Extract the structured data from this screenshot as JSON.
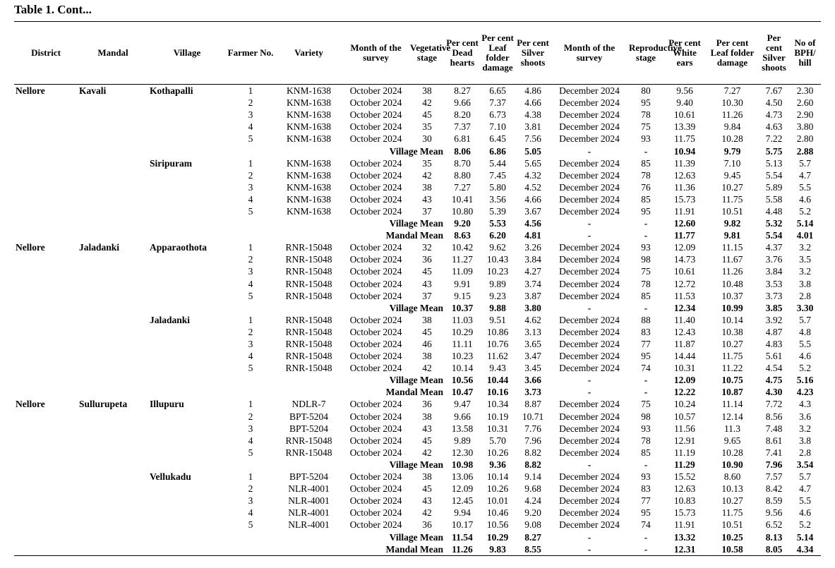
{
  "title": "Table 1. Cont...",
  "table": {
    "columns": [
      "District",
      "Mandal",
      "Village",
      "Farmer No.",
      "Variety",
      "Month of the survey",
      "Vegetative stage",
      "Per cent Dead hearts",
      "Per cent Leaf folder damage",
      "Per cent Silver shoots",
      "Month of the survey",
      "Reproductive stage",
      "Per cent White ears",
      "Per cent Leaf folder damage",
      "Per cent Silver shoots",
      "No of BPH/ hill"
    ],
    "rows": [
      {
        "cells": [
          "Nellore",
          "Kavali",
          "Kothapalli",
          "1",
          "KNM-1638",
          "October 2024",
          "38",
          "8.27",
          "6.65",
          "4.86",
          "December 2024",
          "80",
          "9.56",
          "7.27",
          "7.67",
          "2.30"
        ]
      },
      {
        "cells": [
          null,
          null,
          null,
          "2",
          "KNM-1638",
          "October 2024",
          "42",
          "9.66",
          "7.37",
          "4.66",
          "December 2024",
          "95",
          "9.40",
          "10.30",
          "4.50",
          "2.60"
        ]
      },
      {
        "cells": [
          null,
          null,
          null,
          "3",
          "KNM-1638",
          "October 2024",
          "45",
          "8.20",
          "6.73",
          "4.38",
          "December 2024",
          "78",
          "10.61",
          "11.26",
          "4.73",
          "2.90"
        ]
      },
      {
        "cells": [
          null,
          null,
          null,
          "4",
          "KNM-1638",
          "October 2024",
          "35",
          "7.37",
          "7.10",
          "3.81",
          "December 2024",
          "75",
          "13.39",
          "9.84",
          "4.63",
          "3.80"
        ]
      },
      {
        "cells": [
          null,
          null,
          null,
          "5",
          "KNM-1638",
          "October 2024",
          "30",
          "6.81",
          "6.45",
          "7.56",
          "December 2024",
          "93",
          "11.75",
          "10.28",
          "7.22",
          "2.80"
        ]
      },
      {
        "summary": true,
        "cells": [
          null,
          null,
          null,
          null,
          "Village Mean",
          null,
          null,
          "8.06",
          "6.86",
          "5.05",
          "-",
          "-",
          "10.94",
          "9.79",
          "5.75",
          "2.88"
        ]
      },
      {
        "cells": [
          null,
          null,
          "Siripuram",
          "1",
          "KNM-1638",
          "October 2024",
          "35",
          "8.70",
          "5.44",
          "5.65",
          "December 2024",
          "85",
          "11.39",
          "7.10",
          "5.13",
          "5.7"
        ]
      },
      {
        "cells": [
          null,
          null,
          null,
          "2",
          "KNM-1638",
          "October 2024",
          "42",
          "8.80",
          "7.45",
          "4.32",
          "December 2024",
          "78",
          "12.63",
          "9.45",
          "5.54",
          "4.7"
        ]
      },
      {
        "cells": [
          null,
          null,
          null,
          "3",
          "KNM-1638",
          "October 2024",
          "38",
          "7.27",
          "5.80",
          "4.52",
          "December 2024",
          "76",
          "11.36",
          "10.27",
          "5.89",
          "5.5"
        ]
      },
      {
        "cells": [
          null,
          null,
          null,
          "4",
          "KNM-1638",
          "October 2024",
          "43",
          "10.41",
          "3.56",
          "4.66",
          "December 2024",
          "85",
          "15.73",
          "11.75",
          "5.58",
          "4.6"
        ]
      },
      {
        "cells": [
          null,
          null,
          null,
          "5",
          "KNM-1638",
          "October 2024",
          "37",
          "10.80",
          "5.39",
          "3.67",
          "December 2024",
          "95",
          "11.91",
          "10.51",
          "4.48",
          "5.2"
        ]
      },
      {
        "summary": true,
        "cells": [
          null,
          null,
          null,
          null,
          "Village Mean",
          null,
          null,
          "9.20",
          "5.53",
          "4.56",
          "-",
          "-",
          "12.60",
          "9.82",
          "5.32",
          "5.14"
        ]
      },
      {
        "summary": true,
        "cells": [
          null,
          null,
          null,
          null,
          "Mandal Mean",
          null,
          null,
          "8.63",
          "6.20",
          "4.81",
          "-",
          "-",
          "11.77",
          "9.81",
          "5.54",
          "4.01"
        ]
      },
      {
        "cells": [
          "Nellore",
          "Jaladanki",
          "Apparaothota",
          "1",
          "RNR-15048",
          "October 2024",
          "32",
          "10.42",
          "9.62",
          "3.26",
          "December 2024",
          "93",
          "12.09",
          "11.15",
          "4.37",
          "3.2"
        ]
      },
      {
        "cells": [
          null,
          null,
          null,
          "2",
          "RNR-15048",
          "October 2024",
          "36",
          "11.27",
          "10.43",
          "3.84",
          "December 2024",
          "98",
          "14.73",
          "11.67",
          "3.76",
          "3.5"
        ]
      },
      {
        "cells": [
          null,
          null,
          null,
          "3",
          "RNR-15048",
          "October 2024",
          "45",
          "11.09",
          "10.23",
          "4.27",
          "December 2024",
          "75",
          "10.61",
          "11.26",
          "3.84",
          "3.2"
        ]
      },
      {
        "cells": [
          null,
          null,
          null,
          "4",
          "RNR-15048",
          "October 2024",
          "43",
          "9.91",
          "9.89",
          "3.74",
          "December 2024",
          "78",
          "12.72",
          "10.48",
          "3.53",
          "3.8"
        ]
      },
      {
        "cells": [
          null,
          null,
          null,
          "5",
          "RNR-15048",
          "October 2024",
          "37",
          "9.15",
          "9.23",
          "3.87",
          "December 2024",
          "85",
          "11.53",
          "10.37",
          "3.73",
          "2.8"
        ]
      },
      {
        "summary": true,
        "cells": [
          null,
          null,
          null,
          null,
          "Village Mean",
          null,
          null,
          "10.37",
          "9.88",
          "3.80",
          "-",
          "-",
          "12.34",
          "10.99",
          "3.85",
          "3.30"
        ]
      },
      {
        "cells": [
          null,
          null,
          "Jaladanki",
          "1",
          "RNR-15048",
          "October 2024",
          "38",
          "11.03",
          "9.51",
          "4.62",
          "December 2024",
          "88",
          "11.40",
          "10.14",
          "3.92",
          "5.7"
        ]
      },
      {
        "cells": [
          null,
          null,
          null,
          "2",
          "RNR-15048",
          "October 2024",
          "45",
          "10.29",
          "10.86",
          "3.13",
          "December 2024",
          "83",
          "12.43",
          "10.38",
          "4.87",
          "4.8"
        ]
      },
      {
        "cells": [
          null,
          null,
          null,
          "3",
          "RNR-15048",
          "October 2024",
          "46",
          "11.11",
          "10.76",
          "3.65",
          "December 2024",
          "77",
          "11.87",
          "10.27",
          "4.83",
          "5.5"
        ]
      },
      {
        "cells": [
          null,
          null,
          null,
          "4",
          "RNR-15048",
          "October 2024",
          "38",
          "10.23",
          "11.62",
          "3.47",
          "December 2024",
          "95",
          "14.44",
          "11.75",
          "5.61",
          "4.6"
        ]
      },
      {
        "cells": [
          null,
          null,
          null,
          "5",
          "RNR-15048",
          "October 2024",
          "42",
          "10.14",
          "9.43",
          "3.45",
          "December 2024",
          "74",
          "10.31",
          "11.22",
          "4.54",
          "5.2"
        ]
      },
      {
        "summary": true,
        "cells": [
          null,
          null,
          null,
          null,
          "Village Mean",
          null,
          null,
          "10.56",
          "10.44",
          "3.66",
          "-",
          "-",
          "12.09",
          "10.75",
          "4.75",
          "5.16"
        ]
      },
      {
        "summary": true,
        "cells": [
          null,
          null,
          null,
          null,
          "Mandal Mean",
          null,
          null,
          "10.47",
          "10.16",
          "3.73",
          "-",
          "-",
          "12.22",
          "10.87",
          "4.30",
          "4.23"
        ]
      },
      {
        "cells": [
          "Nellore",
          "Sullurupeta",
          "Illupuru",
          "1",
          "NDLR-7",
          "October 2024",
          "36",
          "9.47",
          "10.34",
          "8.87",
          "December 2024",
          "75",
          "10.24",
          "11.14",
          "7.72",
          "4.3"
        ]
      },
      {
        "cells": [
          null,
          null,
          null,
          "2",
          "BPT-5204",
          "October 2024",
          "38",
          "9.66",
          "10.19",
          "10.71",
          "December 2024",
          "98",
          "10.57",
          "12.14",
          "8.56",
          "3.6"
        ]
      },
      {
        "cells": [
          null,
          null,
          null,
          "3",
          "BPT-5204",
          "October 2024",
          "43",
          "13.58",
          "10.31",
          "7.76",
          "December 2024",
          "93",
          "11.56",
          "11.3",
          "7.48",
          "3.2"
        ]
      },
      {
        "cells": [
          null,
          null,
          null,
          "4",
          "RNR-15048",
          "October 2024",
          "45",
          "9.89",
          "5.70",
          "7.96",
          "December 2024",
          "78",
          "12.91",
          "9.65",
          "8.61",
          "3.8"
        ]
      },
      {
        "cells": [
          null,
          null,
          null,
          "5",
          "RNR-15048",
          "October 2024",
          "42",
          "12.30",
          "10.26",
          "8.82",
          "December 2024",
          "85",
          "11.19",
          "10.28",
          "7.41",
          "2.8"
        ]
      },
      {
        "summary": true,
        "cells": [
          null,
          null,
          null,
          null,
          "Village Mean",
          null,
          null,
          "10.98",
          "9.36",
          "8.82",
          "-",
          "-",
          "11.29",
          "10.90",
          "7.96",
          "3.54"
        ]
      },
      {
        "cells": [
          null,
          null,
          "Vellukadu",
          "1",
          "BPT-5204",
          "October 2024",
          "38",
          "13.06",
          "10.14",
          "9.14",
          "December 2024",
          "93",
          "15.52",
          "8.60",
          "7.57",
          "5.7"
        ]
      },
      {
        "cells": [
          null,
          null,
          null,
          "2",
          "NLR-4001",
          "October 2024",
          "45",
          "12.09",
          "10.26",
          "9.68",
          "December 2024",
          "83",
          "12.63",
          "10.13",
          "8.42",
          "4.7"
        ]
      },
      {
        "cells": [
          null,
          null,
          null,
          "3",
          "NLR-4001",
          "October 2024",
          "43",
          "12.45",
          "10.01",
          "4.24",
          "December 2024",
          "77",
          "10.83",
          "10.27",
          "8.59",
          "5.5"
        ]
      },
      {
        "cells": [
          null,
          null,
          null,
          "4",
          "NLR-4001",
          "October 2024",
          "42",
          "9.94",
          "10.46",
          "9.20",
          "December 2024",
          "95",
          "15.73",
          "11.75",
          "9.56",
          "4.6"
        ]
      },
      {
        "cells": [
          null,
          null,
          null,
          "5",
          "NLR-4001",
          "October 2024",
          "36",
          "10.17",
          "10.56",
          "9.08",
          "December 2024",
          "74",
          "11.91",
          "10.51",
          "6.52",
          "5.2"
        ]
      },
      {
        "summary": true,
        "cells": [
          null,
          null,
          null,
          null,
          "Village Mean",
          null,
          null,
          "11.54",
          "10.29",
          "8.27",
          "-",
          "-",
          "13.32",
          "10.25",
          "8.13",
          "5.14"
        ]
      },
      {
        "summary": true,
        "cells": [
          null,
          null,
          null,
          null,
          "Mandal Mean",
          null,
          null,
          "11.26",
          "9.83",
          "8.55",
          "-",
          "-",
          "12.31",
          "10.58",
          "8.05",
          "4.34"
        ]
      }
    ]
  }
}
